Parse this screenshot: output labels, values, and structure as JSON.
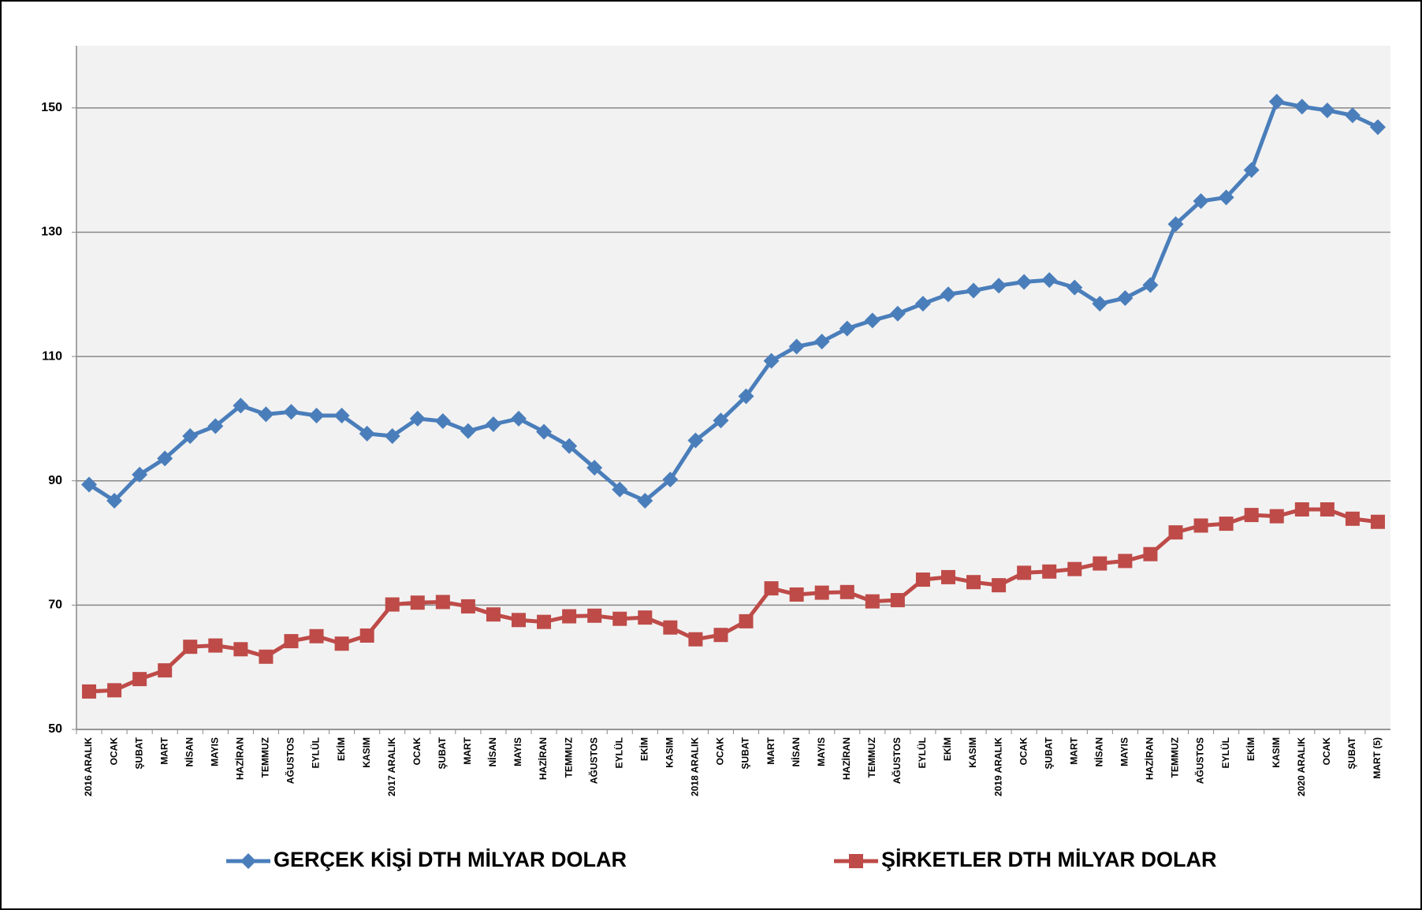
{
  "chart_data": {
    "type": "line",
    "categories": [
      "2016 ARALIK",
      "OCAK",
      "ŞUBAT",
      "MART",
      "NİSAN",
      "MAYIS",
      "HAZİRAN",
      "TEMMUZ",
      "AĞUSTOS",
      "EYLÜL",
      "EKİM",
      "KASIM",
      "2017 ARALIK",
      "OCAK",
      "ŞUBAT",
      "MART",
      "NİSAN",
      "MAYIS",
      "HAZİRAN",
      "TEMMUZ",
      "AĞUSTOS",
      "EYLÜL",
      "EKİM",
      "KASIM",
      "2018 ARALIK",
      "OCAK",
      "ŞUBAT",
      "MART",
      "NİSAN",
      "MAYIS",
      "HAZİRAN",
      "TEMMUZ",
      "AĞUSTOS",
      "EYLÜL",
      "EKİM",
      "KASIM",
      "2019 ARALIK",
      "OCAK",
      "ŞUBAT",
      "MART",
      "NİSAN",
      "MAYIS",
      "HAZİRAN",
      "TEMMUZ",
      "AĞUSTOS",
      "EYLÜL",
      "EKİM",
      "KASIM",
      "2020 ARALIK",
      "OCAK",
      "ŞUBAT",
      "MART (5)"
    ],
    "series": [
      {
        "name": "GERÇEK KİŞİ DTH MİLYAR DOLAR",
        "color": "#4a7ebb",
        "marker": "diamond",
        "values": [
          89.4,
          86.8,
          91.0,
          93.6,
          97.2,
          98.8,
          102.1,
          100.7,
          101.1,
          100.5,
          100.5,
          97.6,
          97.2,
          100.0,
          99.6,
          98.0,
          99.1,
          100.0,
          97.9,
          95.6,
          92.1,
          88.6,
          86.8,
          90.2,
          96.5,
          99.7,
          103.6,
          109.3,
          111.6,
          112.4,
          114.5,
          115.8,
          116.9,
          118.5,
          120.0,
          120.6,
          121.4,
          122.0,
          122.3,
          121.1,
          118.5,
          119.4,
          121.5,
          131.3,
          135.0,
          135.6,
          140.0,
          151.0,
          150.2,
          149.6,
          148.8,
          146.9
        ]
      },
      {
        "name": "ŞİRKETLER DTH MİLYAR DOLAR",
        "color": "#be4b48",
        "marker": "square",
        "values": [
          56.1,
          56.3,
          58.1,
          59.5,
          63.3,
          63.5,
          62.9,
          61.7,
          64.2,
          65.0,
          63.8,
          65.1,
          70.1,
          70.4,
          70.5,
          69.8,
          68.5,
          67.6,
          67.3,
          68.2,
          68.3,
          67.8,
          68.0,
          66.4,
          64.5,
          65.2,
          67.4,
          72.7,
          71.7,
          72.0,
          72.1,
          70.6,
          70.8,
          74.1,
          74.5,
          73.7,
          73.2,
          75.2,
          75.4,
          75.8,
          76.7,
          77.1,
          78.2,
          81.7,
          82.8,
          83.1,
          84.5,
          84.3,
          85.4,
          85.4,
          83.9,
          83.4
        ]
      }
    ],
    "ylim": [
      50,
      160
    ],
    "yticks": [
      50,
      70,
      90,
      110,
      130,
      150
    ],
    "grid": true
  }
}
